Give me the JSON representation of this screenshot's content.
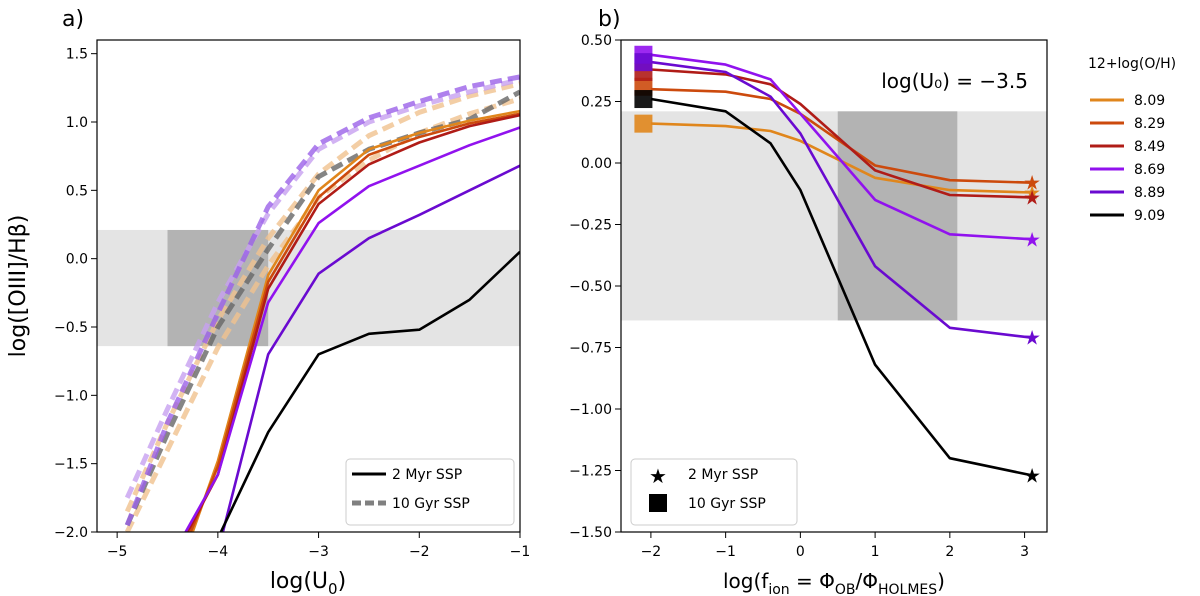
{
  "chart_data": [
    {
      "type": "line",
      "panel_label": "a)",
      "xlabel_main": "log(U",
      "xlabel_sub": "0",
      "xlabel_end": ")",
      "ylabel": "log([OIII]/Hβ)",
      "xlim": [
        -5.2,
        -1.0
      ],
      "ylim": [
        -2.0,
        1.6
      ],
      "xticks": [
        -5,
        -4,
        -3,
        -2,
        -1
      ],
      "xtick_labels": [
        "−5",
        "−4",
        "−3",
        "−2",
        "−1"
      ],
      "yticks": [
        -2.0,
        -1.5,
        -1.0,
        -0.5,
        0.0,
        0.5,
        1.0,
        1.5
      ],
      "ytick_labels": [
        "−2.0",
        "−1.5",
        "−1.0",
        "−0.5",
        "0.0",
        "0.5",
        "1.0",
        "1.5"
      ],
      "bands": [
        {
          "kind": "horizontal",
          "y0": -0.64,
          "y1": 0.21,
          "color": "#e4e4e4"
        },
        {
          "kind": "rect",
          "x0": -4.5,
          "x1": -3.5,
          "y0": -0.64,
          "y1": 0.21,
          "color": "#b3b3b3"
        }
      ],
      "series": [
        {
          "name": "8.09 10 Gyr",
          "style": "dashed",
          "color": "#f0c28f",
          "x": [
            -4.9,
            -4.5,
            -4.0,
            -3.5,
            -3.0,
            -2.5,
            -2.0,
            -1.5,
            -1.0
          ],
          "y": [
            -2.0,
            -1.4,
            -0.65,
            -0.05,
            0.45,
            0.72,
            0.92,
            1.06,
            1.17
          ]
        },
        {
          "name": "8.29 10 Gyr",
          "style": "dashed",
          "color": "#f0c28f",
          "x": [
            -4.9,
            -4.5,
            -4.0,
            -3.5,
            -3.0,
            -2.5,
            -2.0,
            -1.5,
            -1.0
          ],
          "y": [
            -1.85,
            -1.2,
            -0.45,
            0.15,
            0.62,
            0.9,
            1.07,
            1.19,
            1.28
          ]
        },
        {
          "name": "9.09 10 Gyr",
          "style": "dashed",
          "color": "#666666",
          "x": [
            -4.9,
            -4.5,
            -4.0,
            -3.5,
            -3.0,
            -2.5,
            -2.0,
            -1.5,
            -1.0
          ],
          "y": [
            -1.95,
            -1.28,
            -0.5,
            0.07,
            0.6,
            0.8,
            0.92,
            1.02,
            1.22
          ]
        },
        {
          "name": "8.49 10 Gyr",
          "style": "dashed",
          "color": "#c7a0f0",
          "x": [
            -4.9,
            -4.5,
            -4.0,
            -3.5,
            -3.0,
            -2.5,
            -2.0,
            -1.5,
            -1.0
          ],
          "y": [
            -1.75,
            -1.1,
            -0.32,
            0.33,
            0.8,
            1.0,
            1.12,
            1.22,
            1.31
          ]
        },
        {
          "name": "8.69 10 Gyr",
          "style": "dashed",
          "color": "#9b62e8",
          "x": [
            -4.9,
            -4.5,
            -4.0,
            -3.5,
            -3.0,
            -2.5,
            -2.0,
            -1.5,
            -1.0
          ],
          "y": [
            -1.95,
            -1.2,
            -0.4,
            0.38,
            0.84,
            1.03,
            1.15,
            1.26,
            1.33
          ]
        },
        {
          "name": "8.09 2 Myr",
          "style": "solid",
          "color": "#e0861c",
          "x": [
            -4.25,
            -4.0,
            -3.5,
            -3.0,
            -2.5,
            -2.0,
            -1.5,
            -1.0
          ],
          "y": [
            -2.0,
            -1.48,
            -0.12,
            0.5,
            0.8,
            0.92,
            1.01,
            1.08
          ]
        },
        {
          "name": "8.29 2 Myr",
          "style": "solid",
          "color": "#cc4a0d",
          "x": [
            -4.27,
            -4.0,
            -3.5,
            -3.0,
            -2.5,
            -2.0,
            -1.5,
            -1.0
          ],
          "y": [
            -2.0,
            -1.52,
            -0.17,
            0.45,
            0.76,
            0.89,
            0.99,
            1.06
          ]
        },
        {
          "name": "8.49 2 Myr",
          "style": "solid",
          "color": "#b01c17",
          "x": [
            -4.3,
            -4.0,
            -3.5,
            -3.0,
            -2.5,
            -2.0,
            -1.5,
            -1.0
          ],
          "y": [
            -2.0,
            -1.58,
            -0.22,
            0.4,
            0.69,
            0.85,
            0.97,
            1.05
          ]
        },
        {
          "name": "8.69 2 Myr",
          "style": "solid",
          "color": "#9112ee",
          "x": [
            -4.32,
            -4.0,
            -3.5,
            -3.0,
            -2.5,
            -2.0,
            -1.5,
            -1.0
          ],
          "y": [
            -2.0,
            -1.58,
            -0.32,
            0.26,
            0.53,
            0.68,
            0.83,
            0.96
          ]
        },
        {
          "name": "8.89 2 Myr",
          "style": "solid",
          "color": "#6a0ad0",
          "x": [
            -3.95,
            -3.5,
            -3.0,
            -2.5,
            -2.0,
            -1.5,
            -1.0
          ],
          "y": [
            -2.0,
            -0.7,
            -0.11,
            0.15,
            0.32,
            0.5,
            0.68
          ]
        },
        {
          "name": "9.09 2 Myr",
          "style": "solid",
          "color": "#000000",
          "x": [
            -3.97,
            -3.5,
            -3.0,
            -2.5,
            -2.0,
            -1.5,
            -1.0
          ],
          "y": [
            -2.0,
            -1.27,
            -0.7,
            -0.55,
            -0.52,
            -0.3,
            0.05
          ]
        }
      ],
      "legend": {
        "position": "lower-right",
        "entries": [
          {
            "label": "2 Myr SSP",
            "style": "solid",
            "color": "#000000"
          },
          {
            "label": "10 Gyr SSP",
            "style": "dashed",
            "color": "#808080"
          }
        ]
      }
    },
    {
      "type": "line",
      "panel_label": "b)",
      "xlabel_main": "log(f",
      "xlabel_sub1": "ion",
      "xlabel_mid": " = Φ",
      "xlabel_sub2": "OB",
      "xlabel_mid2": "/Φ",
      "xlabel_sub3": "HOLMES",
      "xlabel_end": ")",
      "annotation": "log(U₀) = −3.5",
      "xlim": [
        -2.4,
        3.3
      ],
      "ylim": [
        -1.5,
        0.5
      ],
      "xticks": [
        -2,
        -1,
        0,
        1,
        2,
        3
      ],
      "xtick_labels": [
        "−2",
        "−1",
        "0",
        "1",
        "2",
        "3"
      ],
      "yticks": [
        -1.5,
        -1.25,
        -1.0,
        -0.75,
        -0.5,
        -0.25,
        0.0,
        0.25,
        0.5
      ],
      "ytick_labels": [
        "−1.50",
        "−1.25",
        "−1.00",
        "−0.75",
        "−0.50",
        "−0.25",
        "0.00",
        "0.25",
        "0.50"
      ],
      "bands": [
        {
          "kind": "horizontal",
          "y0": -0.64,
          "y1": 0.21,
          "color": "#e4e4e4"
        },
        {
          "kind": "rect",
          "x0": 0.5,
          "x1": 2.1,
          "y0": -0.64,
          "y1": 0.21,
          "color": "#b3b3b3"
        }
      ],
      "series": [
        {
          "name": "8.09",
          "color": "#e0861c",
          "x": [
            -2.0,
            -1.0,
            -0.4,
            0.0,
            1.0,
            2.0,
            3.1
          ],
          "y": [
            0.16,
            0.15,
            0.13,
            0.09,
            -0.06,
            -0.11,
            -0.12
          ],
          "square_y": 0.16,
          "star_y": -0.12
        },
        {
          "name": "8.29",
          "color": "#cc4a0d",
          "x": [
            -2.0,
            -1.0,
            -0.4,
            0.0,
            1.0,
            2.0,
            3.1
          ],
          "y": [
            0.3,
            0.29,
            0.26,
            0.2,
            -0.01,
            -0.07,
            -0.08
          ],
          "square_y": 0.31,
          "star_y": -0.08
        },
        {
          "name": "8.49",
          "color": "#b01c17",
          "x": [
            -2.0,
            -1.0,
            -0.4,
            0.0,
            1.0,
            2.0,
            3.1
          ],
          "y": [
            0.38,
            0.36,
            0.32,
            0.24,
            -0.03,
            -0.13,
            -0.14
          ],
          "square_y": 0.37,
          "star_y": -0.14
        },
        {
          "name": "8.69",
          "color": "#9112ee",
          "x": [
            -2.0,
            -1.0,
            -0.4,
            0.0,
            1.0,
            2.0,
            3.1
          ],
          "y": [
            0.44,
            0.4,
            0.34,
            0.2,
            -0.15,
            -0.29,
            -0.31
          ],
          "square_y": 0.44,
          "star_y": -0.31
        },
        {
          "name": "8.89",
          "color": "#6a0ad0",
          "x": [
            -2.0,
            -1.0,
            -0.4,
            0.0,
            1.0,
            2.0,
            3.1
          ],
          "y": [
            0.41,
            0.37,
            0.27,
            0.12,
            -0.42,
            -0.67,
            -0.71
          ],
          "square_y": 0.41,
          "star_y": -0.71
        },
        {
          "name": "9.09",
          "color": "#000000",
          "x": [
            -2.0,
            -1.0,
            -0.4,
            0.0,
            1.0,
            2.0,
            3.1
          ],
          "y": [
            0.26,
            0.21,
            0.08,
            -0.11,
            -0.82,
            -1.2,
            -1.27
          ],
          "square_y": 0.26,
          "star_y": -1.27
        }
      ],
      "legend": {
        "position": "lower-left",
        "entries": [
          {
            "label": "2 Myr SSP",
            "marker": "star"
          },
          {
            "label": "10 Gyr SSP",
            "marker": "square"
          }
        ]
      }
    }
  ],
  "metallicity_legend": {
    "title": "12+log(O/H)",
    "entries": [
      {
        "label": "8.09",
        "color": "#e0861c"
      },
      {
        "label": "8.29",
        "color": "#cc4a0d"
      },
      {
        "label": "8.49",
        "color": "#b01c17"
      },
      {
        "label": "8.69",
        "color": "#9112ee"
      },
      {
        "label": "8.89",
        "color": "#6a0ad0"
      },
      {
        "label": "9.09",
        "color": "#000000"
      }
    ]
  }
}
